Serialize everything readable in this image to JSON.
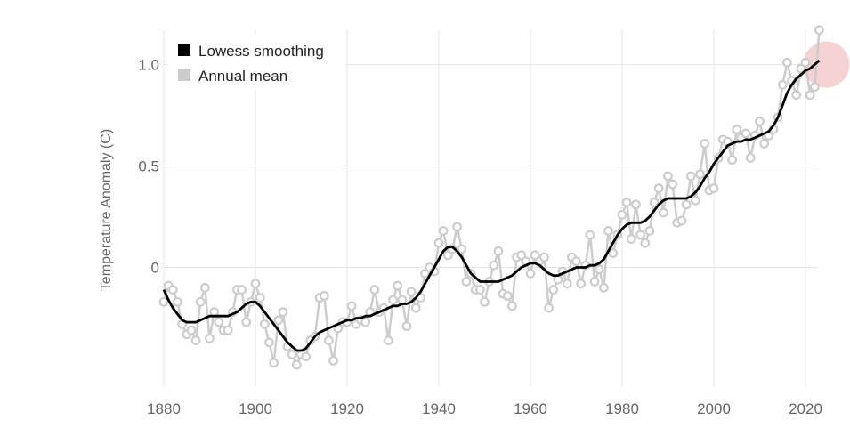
{
  "chart_data": {
    "type": "line",
    "title": "",
    "xlabel": "",
    "ylabel": "Temperature Anomaly (C)",
    "xlim": [
      1880,
      2023
    ],
    "ylim": [
      -0.6,
      1.2
    ],
    "xticks": [
      1880,
      1900,
      1920,
      1940,
      1960,
      1980,
      2000,
      2020
    ],
    "xtick_labels": [
      "1880",
      "1900",
      "1920",
      "1940",
      "1960",
      "1980",
      "2000",
      "2020"
    ],
    "yticks": [
      0,
      0.5,
      1.0
    ],
    "ytick_labels": [
      "0",
      "0.5",
      "1.0"
    ],
    "grid": true,
    "legend_position": "top-left",
    "legend": [
      {
        "label": "Lowess smoothing",
        "color": "#000000"
      },
      {
        "label": "Annual mean",
        "color": "#cccccc"
      }
    ],
    "highlight": {
      "x": 2023,
      "y": 1.0,
      "color": "#f2c4c4"
    },
    "x": [
      1880,
      1881,
      1882,
      1883,
      1884,
      1885,
      1886,
      1887,
      1888,
      1889,
      1890,
      1891,
      1892,
      1893,
      1894,
      1895,
      1896,
      1897,
      1898,
      1899,
      1900,
      1901,
      1902,
      1903,
      1904,
      1905,
      1906,
      1907,
      1908,
      1909,
      1910,
      1911,
      1912,
      1913,
      1914,
      1915,
      1916,
      1917,
      1918,
      1919,
      1920,
      1921,
      1922,
      1923,
      1924,
      1925,
      1926,
      1927,
      1928,
      1929,
      1930,
      1931,
      1932,
      1933,
      1934,
      1935,
      1936,
      1937,
      1938,
      1939,
      1940,
      1941,
      1942,
      1943,
      1944,
      1945,
      1946,
      1947,
      1948,
      1949,
      1950,
      1951,
      1952,
      1953,
      1954,
      1955,
      1956,
      1957,
      1958,
      1959,
      1960,
      1961,
      1962,
      1963,
      1964,
      1965,
      1966,
      1967,
      1968,
      1969,
      1970,
      1971,
      1972,
      1973,
      1974,
      1975,
      1976,
      1977,
      1978,
      1979,
      1980,
      1981,
      1982,
      1983,
      1984,
      1985,
      1986,
      1987,
      1988,
      1989,
      1990,
      1991,
      1992,
      1993,
      1994,
      1995,
      1996,
      1997,
      1998,
      1999,
      2000,
      2001,
      2002,
      2003,
      2004,
      2005,
      2006,
      2007,
      2008,
      2009,
      2010,
      2011,
      2012,
      2013,
      2014,
      2015,
      2016,
      2017,
      2018,
      2019,
      2020,
      2021,
      2022,
      2023
    ],
    "series": [
      {
        "name": "Annual mean",
        "color": "#cccccc",
        "values": [
          -0.17,
          -0.09,
          -0.11,
          -0.17,
          -0.28,
          -0.33,
          -0.31,
          -0.36,
          -0.17,
          -0.1,
          -0.35,
          -0.22,
          -0.27,
          -0.31,
          -0.31,
          -0.22,
          -0.11,
          -0.11,
          -0.27,
          -0.17,
          -0.08,
          -0.15,
          -0.28,
          -0.37,
          -0.47,
          -0.26,
          -0.22,
          -0.39,
          -0.43,
          -0.48,
          -0.43,
          -0.44,
          -0.36,
          -0.34,
          -0.15,
          -0.14,
          -0.36,
          -0.46,
          -0.3,
          -0.27,
          -0.27,
          -0.19,
          -0.28,
          -0.26,
          -0.27,
          -0.22,
          -0.11,
          -0.22,
          -0.2,
          -0.36,
          -0.16,
          -0.09,
          -0.16,
          -0.29,
          -0.12,
          -0.2,
          -0.15,
          -0.03,
          0.0,
          -0.02,
          0.12,
          0.18,
          0.06,
          0.09,
          0.2,
          0.09,
          -0.07,
          -0.03,
          -0.11,
          -0.11,
          -0.17,
          -0.07,
          0.01,
          0.08,
          -0.13,
          -0.14,
          -0.19,
          0.05,
          0.06,
          0.03,
          -0.03,
          0.06,
          0.03,
          0.05,
          -0.2,
          -0.11,
          -0.06,
          -0.02,
          -0.08,
          0.05,
          0.03,
          -0.08,
          0.01,
          0.16,
          -0.07,
          -0.01,
          -0.1,
          0.18,
          0.07,
          0.16,
          0.26,
          0.32,
          0.14,
          0.31,
          0.16,
          0.12,
          0.18,
          0.32,
          0.39,
          0.27,
          0.45,
          0.41,
          0.22,
          0.23,
          0.31,
          0.45,
          0.33,
          0.46,
          0.61,
          0.38,
          0.39,
          0.54,
          0.63,
          0.62,
          0.53,
          0.68,
          0.64,
          0.66,
          0.54,
          0.65,
          0.72,
          0.61,
          0.65,
          0.68,
          0.74,
          0.9,
          1.01,
          0.92,
          0.85,
          0.98,
          1.01,
          0.85,
          0.89,
          1.17
        ]
      },
      {
        "name": "Lowess smoothing",
        "color": "#000000",
        "values": [
          -0.11,
          -0.16,
          -0.2,
          -0.23,
          -0.26,
          -0.27,
          -0.27,
          -0.27,
          -0.26,
          -0.25,
          -0.24,
          -0.24,
          -0.24,
          -0.24,
          -0.24,
          -0.23,
          -0.22,
          -0.2,
          -0.18,
          -0.17,
          -0.17,
          -0.19,
          -0.22,
          -0.25,
          -0.28,
          -0.31,
          -0.34,
          -0.37,
          -0.39,
          -0.41,
          -0.41,
          -0.4,
          -0.37,
          -0.34,
          -0.32,
          -0.31,
          -0.3,
          -0.29,
          -0.28,
          -0.27,
          -0.26,
          -0.26,
          -0.25,
          -0.25,
          -0.24,
          -0.24,
          -0.23,
          -0.22,
          -0.21,
          -0.2,
          -0.19,
          -0.19,
          -0.18,
          -0.18,
          -0.17,
          -0.15,
          -0.12,
          -0.08,
          -0.04,
          0.0,
          0.04,
          0.08,
          0.1,
          0.1,
          0.08,
          0.05,
          0.01,
          -0.03,
          -0.05,
          -0.07,
          -0.07,
          -0.07,
          -0.07,
          -0.07,
          -0.06,
          -0.05,
          -0.04,
          -0.02,
          0.0,
          0.01,
          0.02,
          0.02,
          0.01,
          -0.01,
          -0.03,
          -0.04,
          -0.04,
          -0.03,
          -0.02,
          -0.01,
          0.0,
          0.0,
          0.0,
          0.01,
          0.01,
          0.02,
          0.04,
          0.08,
          0.12,
          0.16,
          0.19,
          0.21,
          0.22,
          0.22,
          0.22,
          0.23,
          0.25,
          0.28,
          0.31,
          0.33,
          0.34,
          0.34,
          0.34,
          0.34,
          0.34,
          0.35,
          0.37,
          0.4,
          0.44,
          0.47,
          0.51,
          0.54,
          0.57,
          0.6,
          0.61,
          0.62,
          0.62,
          0.63,
          0.63,
          0.64,
          0.65,
          0.66,
          0.67,
          0.7,
          0.74,
          0.8,
          0.86,
          0.9,
          0.93,
          0.95,
          0.97,
          0.98,
          1.0,
          1.02
        ]
      }
    ]
  }
}
